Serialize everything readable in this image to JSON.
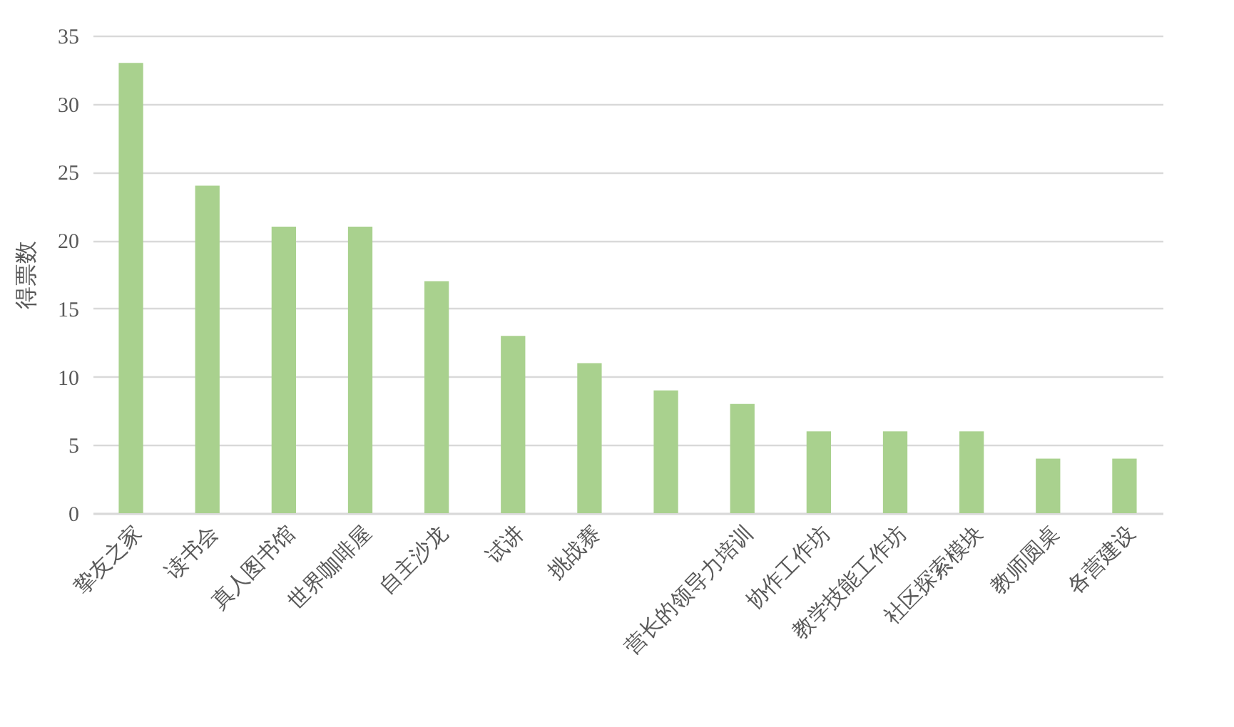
{
  "chart_data": {
    "type": "bar",
    "ylabel": "得票数",
    "categories": [
      "挚友之家",
      "读书会",
      "真人图书馆",
      "世界咖啡屋",
      "自主沙龙",
      "试讲",
      "挑战赛",
      null,
      "营长的领导力培训",
      "协作工作坊",
      "教学技能工作坊",
      "社区探索模块",
      "教师圆桌",
      "各营建设"
    ],
    "values": [
      33,
      24,
      21,
      21,
      17,
      13,
      11,
      9,
      8,
      6,
      6,
      6,
      4,
      4
    ],
    "color": "#a9d18e",
    "ylim": [
      0,
      35
    ],
    "yticks": [
      0,
      5,
      10,
      15,
      20,
      25,
      30,
      35
    ],
    "grid": "y"
  }
}
